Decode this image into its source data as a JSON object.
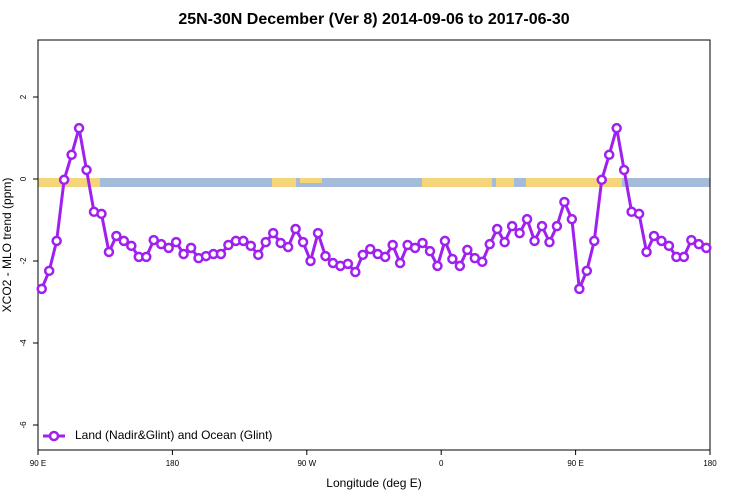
{
  "chart_data": {
    "type": "line",
    "title": "25N-30N December (Ver 8)   2014-09-06 to 2017-06-30",
    "x_label": "Longitude (deg E)",
    "y_label": "XCO2 - MLO trend (ppm)",
    "xlim": [
      90,
      540
    ],
    "xticks": [
      {
        "value": 90,
        "label": "90 E"
      },
      180,
      {
        "value": 270,
        "label": "90 W"
      },
      {
        "value": 360,
        "label": "0"
      },
      {
        "value": 450,
        "label": "90 E"
      },
      {
        "value": 540,
        "label": "180"
      }
    ],
    "ylim": [
      -6.61,
      3.39
    ],
    "yticks": [
      -6,
      -4,
      -2,
      0,
      2
    ],
    "legend": "bottom-left",
    "x": [
      92.5,
      97.5,
      102.5,
      107.5,
      112.5,
      117.5,
      122.5,
      127.5,
      132.5,
      137.5,
      142.5,
      147.5,
      152.5,
      157.5,
      162.5,
      167.5,
      172.5,
      177.5,
      182.5,
      187.5,
      192.5,
      197.5,
      202.5,
      207.5,
      212.5,
      217.5,
      222.5,
      227.5,
      232.5,
      237.5,
      242.5,
      247.5,
      252.5,
      257.5,
      262.5,
      267.5,
      272.5,
      277.5,
      282.5,
      287.5,
      292.5,
      297.5,
      302.5,
      307.5,
      312.5,
      317.5,
      322.5,
      327.5,
      332.5,
      337.5,
      342.5,
      347.5,
      352.5,
      357.5,
      362.5,
      367.5,
      372.5,
      377.5,
      382.5,
      387.5,
      392.5,
      397.5,
      402.5,
      407.5,
      412.5,
      417.5,
      422.5,
      427.5,
      432.5,
      437.5,
      442.5,
      447.5,
      452.5,
      457.5,
      462.5,
      467.5,
      472.5,
      477.5,
      482.5,
      487.5,
      492.5,
      497.5,
      502.5,
      507.5,
      512.5,
      517.5,
      522.5,
      527.5,
      532.5,
      537.5
    ],
    "series": [
      {
        "name": "Land (Nadir&Glint) and Ocean (Glint)",
        "color": "#a020f0",
        "values": [
          -2.68,
          -2.24,
          -1.51,
          -0.02,
          0.59,
          1.24,
          0.22,
          -0.8,
          -0.85,
          -1.78,
          -1.39,
          -1.51,
          -1.63,
          -1.9,
          -1.9,
          -1.49,
          -1.59,
          -1.68,
          -1.54,
          -1.83,
          -1.68,
          -1.93,
          -1.88,
          -1.83,
          -1.83,
          -1.61,
          -1.51,
          -1.51,
          -1.63,
          -1.85,
          -1.54,
          -1.32,
          -1.56,
          -1.66,
          -1.22,
          -1.54,
          -2.0,
          -1.32,
          -1.88,
          -2.05,
          -2.12,
          -2.07,
          -2.27,
          -1.85,
          -1.71,
          -1.83,
          -1.9,
          -1.61,
          -2.05,
          -1.61,
          -1.68,
          -1.56,
          -1.76,
          -2.12,
          -1.51,
          -1.95,
          -2.12,
          -1.73,
          -1.93,
          -2.02,
          -1.59,
          -1.22,
          -1.54,
          -1.15,
          -1.32,
          -0.98,
          -1.51,
          -1.15,
          -1.54,
          -1.15,
          -0.56,
          -0.98,
          -2.68,
          -2.24,
          -1.51,
          -0.02,
          0.59,
          1.24,
          0.22,
          -0.8,
          -0.85,
          -1.78,
          -1.39,
          -1.51,
          -1.63,
          -1.9,
          -1.9,
          -1.49,
          -1.59,
          -1.68
        ]
      }
    ]
  }
}
